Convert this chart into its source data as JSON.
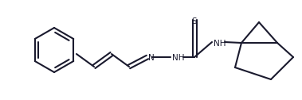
{
  "background_color": "#ffffff",
  "line_color": "#1a1a2e",
  "line_width": 1.5,
  "font_size": 7.5,
  "figsize": [
    3.79,
    1.26
  ],
  "dpi": 100,
  "xlim": [
    0,
    379
  ],
  "ylim": [
    0,
    126
  ]
}
